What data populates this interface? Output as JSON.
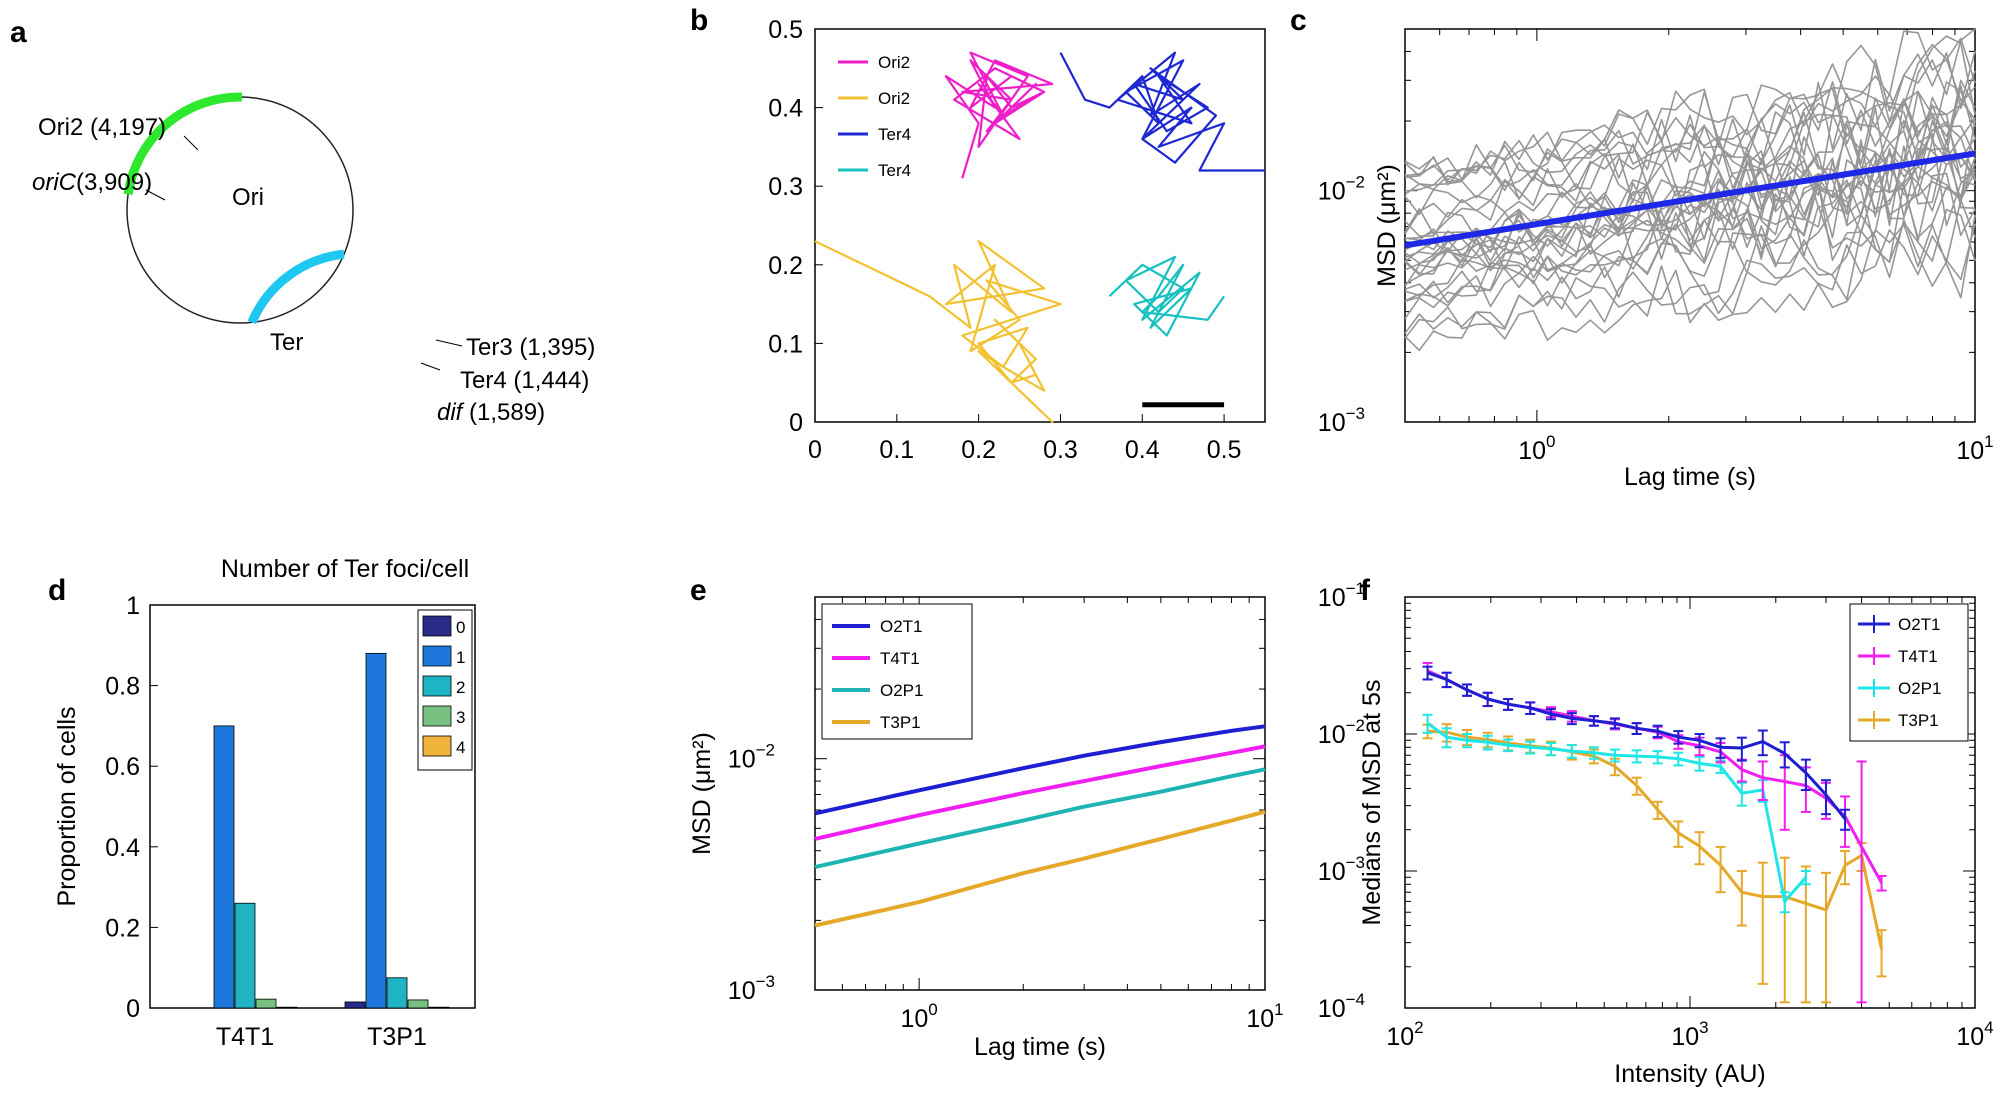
{
  "panels": {
    "a": {
      "label": "a",
      "regions": [
        {
          "name": "Ori",
          "color": "#2ee82e"
        },
        {
          "name": "Ter",
          "color": "#1ec8f0"
        }
      ],
      "loci": [
        {
          "text_italic": "",
          "text": "Ori2 (4,197)"
        },
        {
          "text_italic": "oriC",
          "text": "(3,909)"
        },
        {
          "text_italic": "",
          "text": "Ter3 (1,395)"
        },
        {
          "text_italic": "",
          "text": "Ter4 (1,444)"
        },
        {
          "text_italic": "dif",
          "text": " (1,589)"
        }
      ]
    },
    "b": {
      "label": "b",
      "x_ticks": [
        "0",
        "0.1",
        "0.2",
        "0.3",
        "0.4",
        "0.5"
      ],
      "y_ticks": [
        "0",
        "0.1",
        "0.2",
        "0.3",
        "0.4",
        "0.5"
      ]
    },
    "c": {
      "label": "c"
    },
    "d": {
      "label": "d"
    },
    "e": {
      "label": "e"
    },
    "f": {
      "label": "f"
    }
  },
  "chart_data": [
    {
      "panel": "b",
      "type": "line",
      "xlim": [
        0,
        0.55
      ],
      "ylim": [
        0,
        0.5
      ],
      "grid": false,
      "legend_position": "top-left",
      "scale_bar": {
        "x": [
          0.4,
          0.5
        ],
        "y": 0.022
      },
      "series": [
        {
          "name": "Ori2",
          "color": "#ee1ec8",
          "x": [
            0.18,
            0.2,
            0.16,
            0.22,
            0.19,
            0.24,
            0.21,
            0.27,
            0.23,
            0.28,
            0.22,
            0.17,
            0.25,
            0.2,
            0.23,
            0.19,
            0.26,
            0.22,
            0.28,
            0.24,
            0.21,
            0.2,
            0.24,
            0.18,
            0.29,
            0.22,
            0.19,
            0.24
          ],
          "y": [
            0.31,
            0.38,
            0.44,
            0.4,
            0.46,
            0.41,
            0.37,
            0.43,
            0.39,
            0.42,
            0.45,
            0.41,
            0.36,
            0.43,
            0.39,
            0.47,
            0.44,
            0.38,
            0.42,
            0.4,
            0.44,
            0.35,
            0.41,
            0.42,
            0.43,
            0.46,
            0.4,
            0.44
          ]
        },
        {
          "name": "Ori2",
          "color": "#f2c232",
          "x": [
            0.0,
            0.14,
            0.19,
            0.17,
            0.24,
            0.2,
            0.28,
            0.16,
            0.22,
            0.19,
            0.25,
            0.21,
            0.3,
            0.18,
            0.23,
            0.26,
            0.2,
            0.24,
            0.27,
            0.22,
            0.25,
            0.28,
            0.23,
            0.2,
            0.26,
            0.29,
            0.24,
            0.27
          ],
          "y": [
            0.23,
            0.16,
            0.12,
            0.2,
            0.14,
            0.23,
            0.17,
            0.15,
            0.2,
            0.09,
            0.13,
            0.18,
            0.15,
            0.11,
            0.07,
            0.12,
            0.1,
            0.05,
            0.08,
            0.13,
            0.1,
            0.04,
            0.07,
            0.09,
            0.03,
            0.0,
            0.05,
            0.06
          ]
        },
        {
          "name": "Ter4",
          "color": "#1e28d2",
          "x": [
            0.3,
            0.33,
            0.36,
            0.4,
            0.42,
            0.38,
            0.45,
            0.4,
            0.47,
            0.41,
            0.44,
            0.37,
            0.46,
            0.42,
            0.48,
            0.43,
            0.39,
            0.45,
            0.41,
            0.49,
            0.44,
            0.4,
            0.46,
            0.42,
            0.5,
            0.47,
            0.55
          ],
          "y": [
            0.47,
            0.41,
            0.4,
            0.44,
            0.38,
            0.42,
            0.46,
            0.36,
            0.43,
            0.39,
            0.47,
            0.41,
            0.38,
            0.44,
            0.4,
            0.37,
            0.43,
            0.41,
            0.45,
            0.39,
            0.33,
            0.36,
            0.4,
            0.35,
            0.38,
            0.32,
            0.32
          ]
        },
        {
          "name": "Ter4",
          "color": "#18c0c0",
          "x": [
            0.36,
            0.4,
            0.45,
            0.42,
            0.38,
            0.44,
            0.4,
            0.47,
            0.43,
            0.39,
            0.46,
            0.41,
            0.45,
            0.42,
            0.4,
            0.48,
            0.5
          ],
          "y": [
            0.16,
            0.2,
            0.17,
            0.14,
            0.18,
            0.21,
            0.13,
            0.19,
            0.11,
            0.15,
            0.17,
            0.12,
            0.2,
            0.16,
            0.14,
            0.13,
            0.16
          ]
        }
      ]
    },
    {
      "panel": "c",
      "type": "line",
      "xlabel": "Lag time (s)",
      "ylabel": "MSD (μm²)",
      "x_scale": "log",
      "y_scale": "log",
      "xlim": [
        0.5,
        10
      ],
      "ylim": [
        0.001,
        0.05
      ],
      "x_ticks": [
        {
          "v": 1,
          "base": "10",
          "exp": "0"
        },
        {
          "v": 10,
          "base": "10",
          "exp": "1"
        }
      ],
      "y_ticks": [
        {
          "v": 0.001,
          "base": "10",
          "exp": "−3"
        },
        {
          "v": 0.01,
          "base": "10",
          "exp": "−2"
        }
      ],
      "background_tracks": 30,
      "background_color": "#969696",
      "mean": {
        "color": "#1e28e6",
        "x": [
          0.5,
          10
        ],
        "y": [
          0.0058,
          0.0145
        ]
      }
    },
    {
      "panel": "d",
      "type": "bar",
      "title": "Number of Ter foci/cell",
      "ylabel": "Proportion of cells",
      "ylim": [
        0,
        1
      ],
      "y_ticks": [
        "0",
        "0.2",
        "0.4",
        "0.6",
        "0.8",
        "1"
      ],
      "categories": [
        "T4T1",
        "T3P1"
      ],
      "series": [
        {
          "name": "0",
          "color": "#2a2a8a",
          "values": [
            0.0,
            0.015
          ]
        },
        {
          "name": "1",
          "color": "#1e78dc",
          "values": [
            0.7,
            0.88
          ]
        },
        {
          "name": "2",
          "color": "#1eb4c4",
          "values": [
            0.26,
            0.075
          ]
        },
        {
          "name": "3",
          "color": "#78c080",
          "values": [
            0.022,
            0.02
          ]
        },
        {
          "name": "4",
          "color": "#f0b43c",
          "values": [
            0.002,
            0.002
          ]
        }
      ]
    },
    {
      "panel": "e",
      "type": "line",
      "xlabel": "Lag time (s)",
      "ylabel": "MSD (μm²)",
      "x_scale": "log",
      "y_scale": "log",
      "xlim": [
        0.5,
        10
      ],
      "ylim": [
        0.001,
        0.05
      ],
      "x_ticks": [
        {
          "v": 1,
          "base": "10",
          "exp": "0"
        },
        {
          "v": 10,
          "base": "10",
          "exp": "1"
        }
      ],
      "y_ticks": [
        {
          "v": 0.001,
          "base": "10",
          "exp": "−3"
        },
        {
          "v": 0.01,
          "base": "10",
          "exp": "−2"
        }
      ],
      "legend_position": "top-left",
      "series": [
        {
          "name": "O2T1",
          "color": "#1e1ed2",
          "x": [
            0.5,
            1,
            2,
            3,
            5,
            8,
            10
          ],
          "y": [
            0.0058,
            0.0073,
            0.0091,
            0.0103,
            0.0118,
            0.0132,
            0.0138
          ]
        },
        {
          "name": "T4T1",
          "color": "#f01ef0",
          "x": [
            0.5,
            1,
            2,
            3,
            5,
            8,
            10
          ],
          "y": [
            0.0045,
            0.0057,
            0.0071,
            0.008,
            0.0093,
            0.0106,
            0.0113
          ]
        },
        {
          "name": "O2P1",
          "color": "#1eb4b4",
          "x": [
            0.5,
            1,
            2,
            3,
            5,
            8,
            10
          ],
          "y": [
            0.0034,
            0.0043,
            0.0054,
            0.0062,
            0.0072,
            0.0084,
            0.009
          ]
        },
        {
          "name": "T3P1",
          "color": "#e6a828",
          "x": [
            0.5,
            1,
            2,
            3,
            5,
            8,
            10
          ],
          "y": [
            0.0019,
            0.0024,
            0.0032,
            0.0037,
            0.0045,
            0.0054,
            0.0059
          ]
        }
      ]
    },
    {
      "panel": "f",
      "type": "line",
      "xlabel": "Intensity (AU)",
      "ylabel": "Medians of MSD at 5s",
      "x_scale": "log",
      "y_scale": "log",
      "xlim": [
        100,
        10000
      ],
      "ylim": [
        0.0001,
        0.1
      ],
      "x_ticks": [
        {
          "v": 100,
          "base": "10",
          "exp": "2"
        },
        {
          "v": 1000,
          "base": "10",
          "exp": "3"
        },
        {
          "v": 10000,
          "base": "10",
          "exp": "4"
        }
      ],
      "y_ticks": [
        {
          "v": 0.0001,
          "base": "10",
          "exp": "−4"
        },
        {
          "v": 0.001,
          "base": "10",
          "exp": "−3"
        },
        {
          "v": 0.01,
          "base": "10",
          "exp": "−2"
        },
        {
          "v": 0.1,
          "base": "10",
          "exp": "−1"
        }
      ],
      "legend_position": "top-right",
      "series": [
        {
          "name": "O2T1",
          "color": "#1e1ed2",
          "x": [
            120,
            140,
            165,
            195,
            230,
            275,
            325,
            385,
            460,
            545,
            650,
            770,
            910,
            1080,
            1280,
            1520,
            1800,
            2150,
            2550,
            3000,
            3500
          ],
          "y": [
            0.028,
            0.025,
            0.021,
            0.018,
            0.0165,
            0.0155,
            0.014,
            0.013,
            0.0125,
            0.012,
            0.011,
            0.0105,
            0.0095,
            0.009,
            0.008,
            0.0079,
            0.0088,
            0.0072,
            0.0052,
            0.0036,
            0.0024
          ],
          "err": [
            0.003,
            0.003,
            0.002,
            0.002,
            0.0015,
            0.0015,
            0.0012,
            0.0012,
            0.001,
            0.001,
            0.001,
            0.001,
            0.001,
            0.001,
            0.0013,
            0.0015,
            0.0018,
            0.0015,
            0.0013,
            0.001,
            0.0004
          ]
        },
        {
          "name": "T4T1",
          "color": "#f01ef0",
          "x": [
            120,
            140,
            165,
            195,
            230,
            275,
            325,
            385,
            460,
            545,
            650,
            770,
            910,
            1080,
            1280,
            1520,
            1800,
            2150,
            2550,
            3000,
            3500,
            4000,
            4700
          ],
          "y": [
            0.029,
            0.025,
            0.021,
            0.018,
            0.0165,
            0.0155,
            0.0145,
            0.0135,
            0.0125,
            0.0118,
            0.011,
            0.0103,
            0.0088,
            0.0082,
            0.0074,
            0.0055,
            0.0048,
            0.0045,
            0.0042,
            0.0034,
            0.0025,
            0.0015,
            0.00082
          ],
          "err": [
            0.004,
            0.003,
            0.002,
            0.002,
            0.0015,
            0.0015,
            0.0012,
            0.0012,
            0.001,
            0.001,
            0.001,
            0.001,
            0.001,
            0.0012,
            0.0012,
            0.001,
            0.0015,
            0.0025,
            0.0015,
            0.001,
            0.001,
            0.0048,
            0.0001
          ]
        },
        {
          "name": "O2P1",
          "color": "#1ee6e6",
          "x": [
            120,
            140,
            165,
            195,
            230,
            275,
            325,
            385,
            460,
            545,
            650,
            770,
            910,
            1080,
            1280,
            1520,
            1800,
            2150,
            2550
          ],
          "y": [
            0.012,
            0.0095,
            0.009,
            0.0087,
            0.0083,
            0.008,
            0.0078,
            0.0075,
            0.0073,
            0.007,
            0.0069,
            0.0068,
            0.0066,
            0.0061,
            0.0058,
            0.0037,
            0.0039,
            0.0006,
            0.0009
          ],
          "err": [
            0.0018,
            0.0015,
            0.001,
            0.001,
            0.0008,
            0.0008,
            0.0008,
            0.0008,
            0.0007,
            0.0007,
            0.0007,
            0.0007,
            0.0007,
            0.0007,
            0.0006,
            0.0007,
            0.0007,
            0.0001,
            0.0001
          ]
        },
        {
          "name": "T3P1",
          "color": "#e6a828",
          "x": [
            120,
            140,
            165,
            195,
            230,
            275,
            325,
            385,
            460,
            545,
            650,
            770,
            910,
            1080,
            1280,
            1520,
            1800,
            2150,
            2550,
            3000,
            3500,
            4000,
            4700
          ],
          "y": [
            0.0105,
            0.0103,
            0.0095,
            0.0091,
            0.0086,
            0.0082,
            0.0079,
            0.0074,
            0.0069,
            0.0058,
            0.0042,
            0.0028,
            0.0019,
            0.00152,
            0.0011,
            0.0007,
            0.00065,
            0.00065,
            0.00058,
            0.00052,
            0.0011,
            0.0013,
            0.00027
          ],
          "err": [
            0.0012,
            0.0015,
            0.0012,
            0.0011,
            0.001,
            0.0009,
            0.0009,
            0.0009,
            0.0008,
            0.0008,
            0.0006,
            0.0004,
            0.0004,
            0.0004,
            0.0004,
            0.0003,
            0.0005,
            0.0006,
            0.0005,
            0.00045,
            0.0003,
            0.0003,
            0.0001
          ]
        }
      ]
    }
  ]
}
